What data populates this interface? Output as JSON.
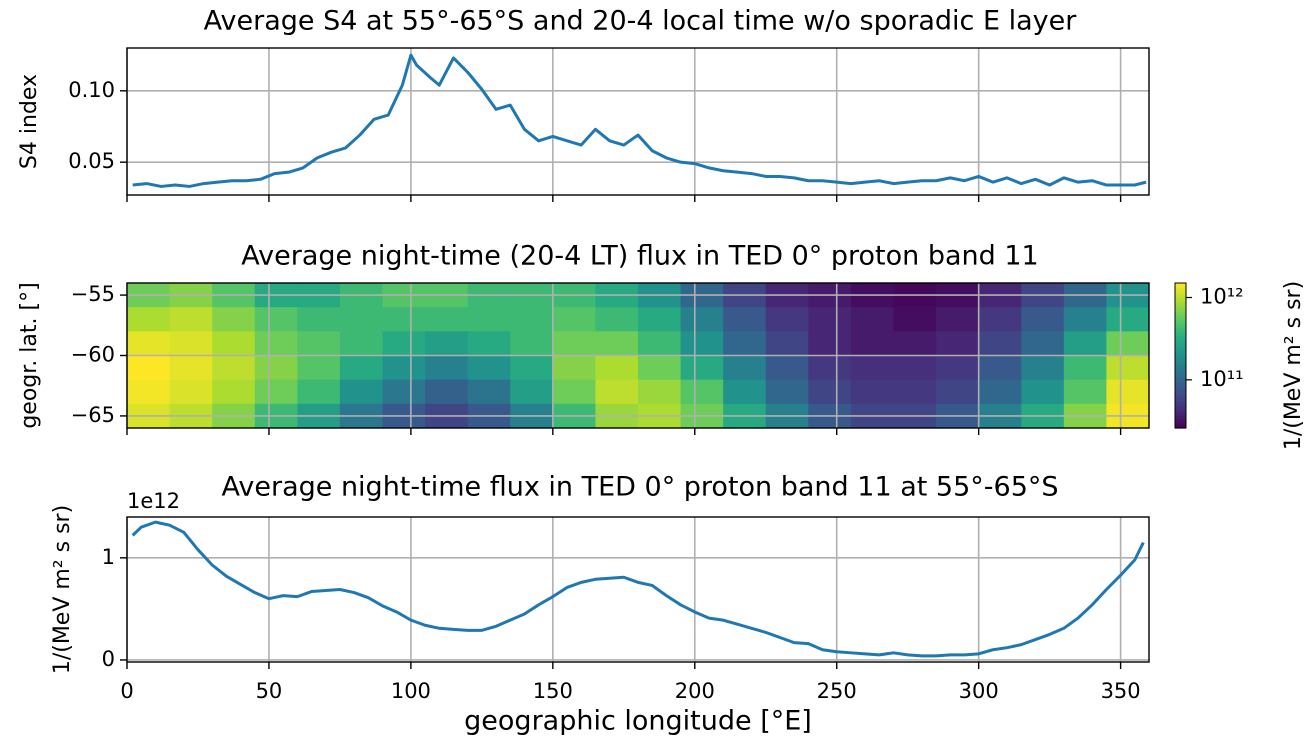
{
  "chart_data": [
    {
      "type": "line",
      "title": "Average S4 at 55°-65°S and 20-4 local time w/o sporadic E layer",
      "ylabel": "S4 index",
      "x": [
        2,
        7,
        12,
        17,
        22,
        27,
        32,
        37,
        42,
        47,
        52,
        57,
        62,
        67,
        72,
        77,
        82,
        87,
        92,
        97,
        100,
        102,
        107,
        110,
        115,
        120,
        125,
        130,
        135,
        140,
        145,
        150,
        155,
        160,
        165,
        170,
        175,
        180,
        185,
        190,
        195,
        200,
        205,
        210,
        215,
        220,
        225,
        230,
        235,
        240,
        245,
        250,
        255,
        260,
        265,
        270,
        275,
        280,
        285,
        290,
        295,
        300,
        305,
        310,
        315,
        320,
        325,
        330,
        335,
        340,
        345,
        350,
        355,
        359
      ],
      "series": [
        {
          "name": "S4",
          "color": "#1f77b4",
          "values": [
            0.034,
            0.035,
            0.033,
            0.034,
            0.033,
            0.035,
            0.036,
            0.037,
            0.037,
            0.038,
            0.042,
            0.043,
            0.046,
            0.053,
            0.057,
            0.06,
            0.069,
            0.08,
            0.083,
            0.104,
            0.125,
            0.118,
            0.109,
            0.104,
            0.123,
            0.113,
            0.101,
            0.087,
            0.09,
            0.073,
            0.065,
            0.068,
            0.065,
            0.062,
            0.073,
            0.065,
            0.062,
            0.069,
            0.058,
            0.053,
            0.05,
            0.049,
            0.046,
            0.044,
            0.043,
            0.042,
            0.04,
            0.04,
            0.039,
            0.037,
            0.037,
            0.036,
            0.035,
            0.036,
            0.037,
            0.035,
            0.036,
            0.037,
            0.037,
            0.039,
            0.037,
            0.04,
            0.036,
            0.039,
            0.035,
            0.038,
            0.034,
            0.039,
            0.036,
            0.037,
            0.034,
            0.034,
            0.034,
            0.036
          ]
        }
      ],
      "xlim": [
        0,
        360
      ],
      "xticks": [
        0,
        50,
        100,
        150,
        200,
        250,
        300,
        350
      ],
      "show_xtick_labels": false,
      "ylim": [
        0.027,
        0.13
      ],
      "yticks": [
        0.05,
        {
          "value": 0.1,
          "label": "0.10"
        }
      ],
      "grid": true
    },
    {
      "type": "heatmap",
      "title": "Average night-time (20-4 LT) flux in TED 0° proton band 11",
      "ylabel": "geogr. lat. [°]",
      "colormap": "viridis",
      "log_color": true,
      "x_edges": [
        0,
        15,
        30,
        45,
        60,
        75,
        90,
        105,
        120,
        135,
        150,
        165,
        180,
        195,
        210,
        225,
        240,
        255,
        270,
        285,
        300,
        315,
        330,
        345,
        360
      ],
      "y_edges": [
        -54,
        -56,
        -58,
        -60,
        -62,
        -64,
        -66
      ],
      "z": [
        [
          600000000000.0,
          700000000000.0,
          500000000000.0,
          300000000000.0,
          300000000000.0,
          400000000000.0,
          500000000000.0,
          500000000000.0,
          400000000000.0,
          400000000000.0,
          400000000000.0,
          300000000000.0,
          200000000000.0,
          100000000000.0,
          60000000000.0,
          40000000000.0,
          35000000000.0,
          30000000000.0,
          28000000000.0,
          30000000000.0,
          40000000000.0,
          60000000000.0,
          100000000000.0,
          200000000000.0
        ],
        [
          900000000000.0,
          1000000000000.0,
          700000000000.0,
          500000000000.0,
          400000000000.0,
          400000000000.0,
          400000000000.0,
          400000000000.0,
          400000000000.0,
          400000000000.0,
          500000000000.0,
          400000000000.0,
          300000000000.0,
          150000000000.0,
          80000000000.0,
          50000000000.0,
          40000000000.0,
          35000000000.0,
          30000000000.0,
          35000000000.0,
          50000000000.0,
          80000000000.0,
          150000000000.0,
          300000000000.0
        ],
        [
          1300000000000.0,
          1200000000000.0,
          900000000000.0,
          600000000000.0,
          500000000000.0,
          400000000000.0,
          300000000000.0,
          250000000000.0,
          300000000000.0,
          400000000000.0,
          600000000000.0,
          600000000000.0,
          400000000000.0,
          200000000000.0,
          100000000000.0,
          60000000000.0,
          40000000000.0,
          35000000000.0,
          35000000000.0,
          40000000000.0,
          60000000000.0,
          100000000000.0,
          250000000000.0,
          600000000000.0
        ],
        [
          1500000000000.0,
          1300000000000.0,
          1000000000000.0,
          700000000000.0,
          500000000000.0,
          300000000000.0,
          200000000000.0,
          150000000000.0,
          200000000000.0,
          300000000000.0,
          700000000000.0,
          900000000000.0,
          600000000000.0,
          300000000000.0,
          150000000000.0,
          80000000000.0,
          50000000000.0,
          45000000000.0,
          45000000000.0,
          50000000000.0,
          80000000000.0,
          150000000000.0,
          400000000000.0,
          1000000000000.0
        ],
        [
          1400000000000.0,
          1200000000000.0,
          900000000000.0,
          600000000000.0,
          400000000000.0,
          200000000000.0,
          130000000000.0,
          90000000000.0,
          120000000000.0,
          250000000000.0,
          600000000000.0,
          1000000000000.0,
          800000000000.0,
          500000000000.0,
          200000000000.0,
          100000000000.0,
          60000000000.0,
          50000000000.0,
          50000000000.0,
          60000000000.0,
          100000000000.0,
          200000000000.0,
          500000000000.0,
          1300000000000.0
        ],
        [
          1200000000000.0,
          1000000000000.0,
          700000000000.0,
          400000000000.0,
          250000000000.0,
          130000000000.0,
          80000000000.0,
          60000000000.0,
          80000000000.0,
          150000000000.0,
          400000000000.0,
          800000000000.0,
          900000000000.0,
          600000000000.0,
          300000000000.0,
          150000000000.0,
          80000000000.0,
          60000000000.0,
          60000000000.0,
          80000000000.0,
          150000000000.0,
          300000000000.0,
          700000000000.0,
          1400000000000.0
        ]
      ],
      "xlim": [
        0,
        360
      ],
      "xticks": [
        0,
        50,
        100,
        150,
        200,
        250,
        300,
        350
      ],
      "show_xtick_labels": false,
      "ylim": [
        -66,
        -54
      ],
      "yticks": [
        {
          "value": -55,
          "label": "−55"
        },
        {
          "value": -60,
          "label": "−60"
        },
        {
          "value": -65,
          "label": "−65"
        }
      ],
      "grid": true,
      "colorbar": {
        "label": "1/(MeV m² s sr)",
        "clim": [
          26000000000.0,
          1500000000000.0
        ],
        "ticks": [
          {
            "value": 100000000000.0,
            "label": "10¹¹"
          },
          {
            "value": 1000000000000.0,
            "label": "10¹²"
          }
        ]
      }
    },
    {
      "type": "line",
      "title": "Average night-time flux in TED 0° proton band 11 at 55°-65°S",
      "ylabel": "1/(MeV m² s sr)",
      "xlabel": "geographic longitude [°E]",
      "y_offset_text": "1e12",
      "x": [
        2,
        5,
        10,
        15,
        20,
        25,
        30,
        35,
        40,
        45,
        50,
        55,
        60,
        65,
        70,
        75,
        80,
        85,
        90,
        95,
        100,
        105,
        110,
        115,
        120,
        125,
        130,
        135,
        140,
        145,
        150,
        155,
        160,
        165,
        170,
        175,
        180,
        185,
        190,
        195,
        200,
        205,
        210,
        215,
        220,
        225,
        230,
        235,
        240,
        245,
        250,
        255,
        260,
        265,
        270,
        275,
        280,
        285,
        290,
        295,
        300,
        305,
        310,
        315,
        320,
        325,
        330,
        335,
        340,
        345,
        350,
        355,
        358
      ],
      "series": [
        {
          "name": "flux",
          "color": "#1f77b4",
          "values": [
            1220000000000.0,
            1300000000000.0,
            1350000000000.0,
            1320000000000.0,
            1250000000000.0,
            1080000000000.0,
            930000000000.0,
            820000000000.0,
            740000000000.0,
            660000000000.0,
            600000000000.0,
            630000000000.0,
            620000000000.0,
            670000000000.0,
            680000000000.0,
            690000000000.0,
            660000000000.0,
            610000000000.0,
            530000000000.0,
            470000000000.0,
            390000000000.0,
            340000000000.0,
            310000000000.0,
            300000000000.0,
            290000000000.0,
            290000000000.0,
            330000000000.0,
            390000000000.0,
            450000000000.0,
            540000000000.0,
            620000000000.0,
            710000000000.0,
            760000000000.0,
            790000000000.0,
            800000000000.0,
            810000000000.0,
            760000000000.0,
            730000000000.0,
            630000000000.0,
            540000000000.0,
            470000000000.0,
            410000000000.0,
            390000000000.0,
            350000000000.0,
            310000000000.0,
            270000000000.0,
            220000000000.0,
            170000000000.0,
            160000000000.0,
            100000000000.0,
            80000000000.0,
            70000000000.0,
            60000000000.0,
            50000000000.0,
            70000000000.0,
            50000000000.0,
            40000000000.0,
            40000000000.0,
            50000000000.0,
            50000000000.0,
            60000000000.0,
            100000000000.0,
            120000000000.0,
            150000000000.0,
            200000000000.0,
            250000000000.0,
            310000000000.0,
            410000000000.0,
            540000000000.0,
            690000000000.0,
            830000000000.0,
            980000000000.0,
            1150000000000.0
          ]
        }
      ],
      "xlim": [
        0,
        360
      ],
      "xticks": [
        0,
        50,
        100,
        150,
        200,
        250,
        300,
        350
      ],
      "show_xtick_labels": true,
      "ylim": [
        -20000000000.0,
        1400000000000.0
      ],
      "yticks": [
        0,
        {
          "value": 1000000000000.0,
          "label": "1"
        }
      ],
      "grid": true
    }
  ]
}
